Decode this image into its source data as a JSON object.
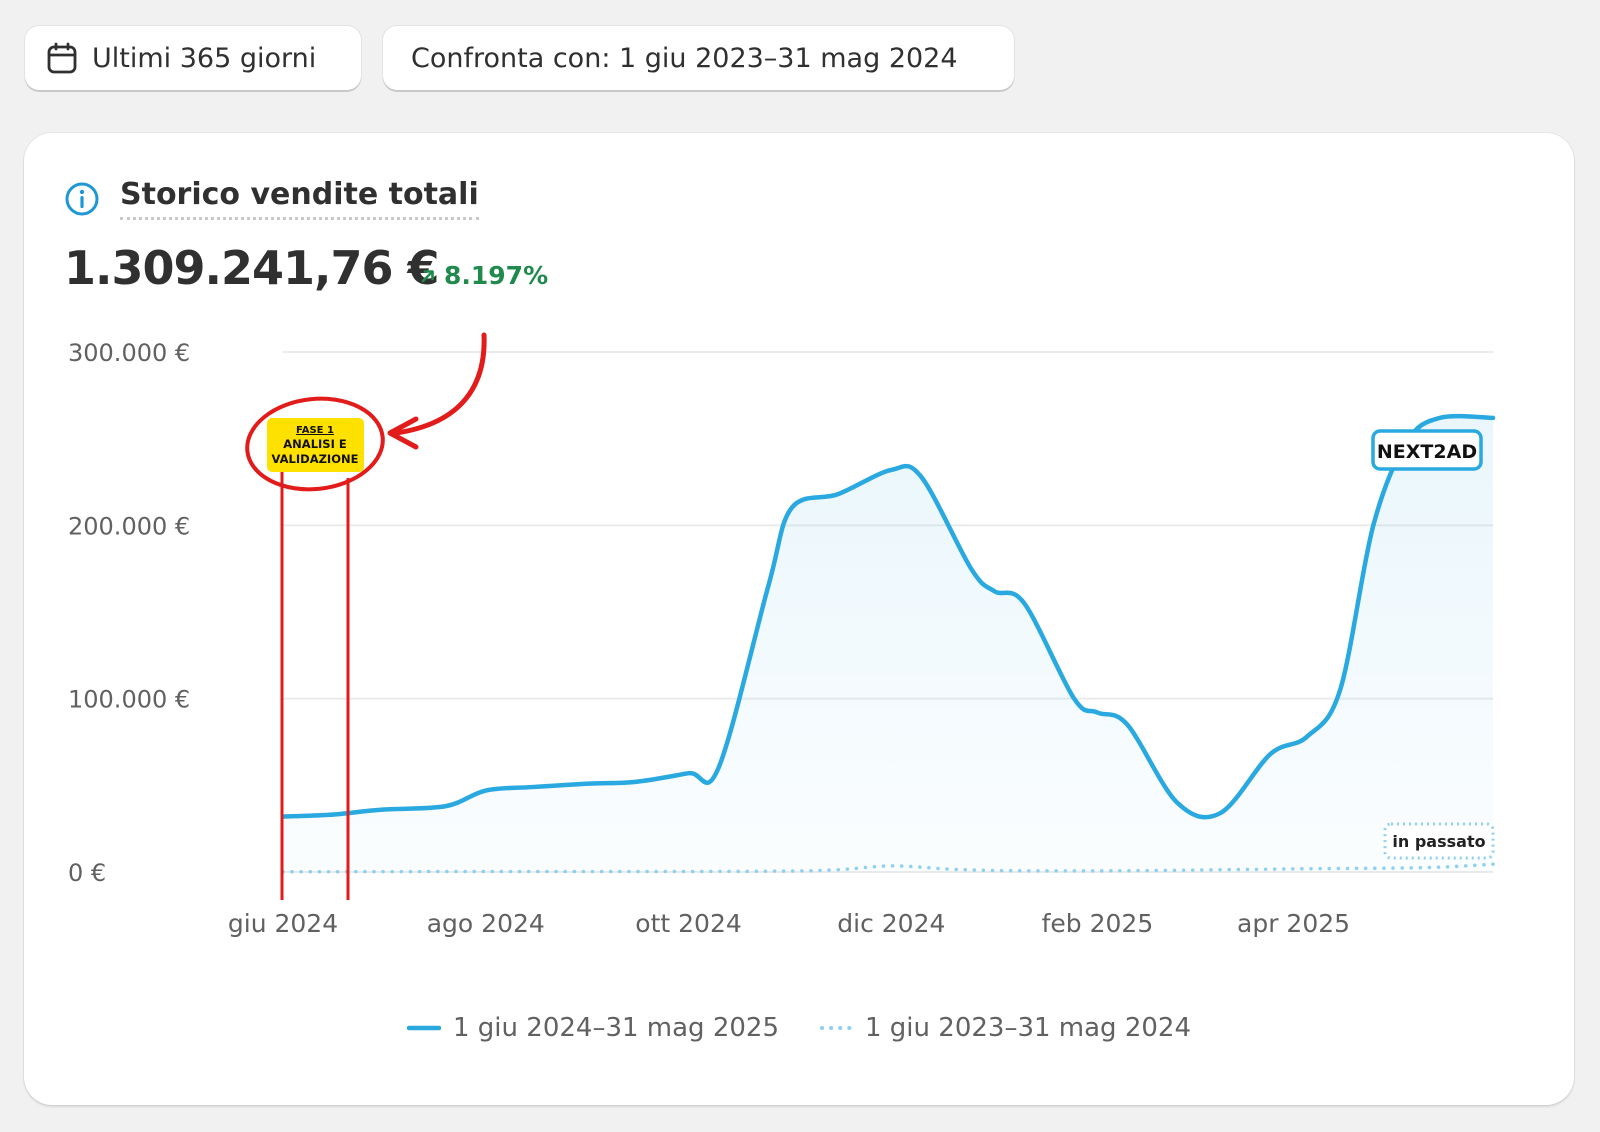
{
  "toolbar": {
    "date_range_label": "Ultimi 365 giorni",
    "compare_label": "Confronta con: 1 giu 2023–31 mag 2024"
  },
  "card": {
    "title": "Storico vendite totali",
    "total": "1.309.241,76 €",
    "delta": "8.197%"
  },
  "annotations": {
    "phase_line1": "FASE 1",
    "phase_line2": "ANALISI E",
    "phase_line3": "VALIDAZIONE",
    "brand": "NEXT2AD",
    "past_label": "in passato"
  },
  "colors": {
    "current_series": "#29a9e0",
    "previous_series": "#8fd0ee",
    "positive_delta": "#1f8a4c",
    "annotation_red": "#e21b1b",
    "annotation_yellow": "#ffe100"
  },
  "chart_data": {
    "type": "line",
    "title": "Storico vendite totali",
    "ylim": [
      0,
      300000
    ],
    "y_ticks": [
      {
        "value": 0,
        "label": "0 €"
      },
      {
        "value": 100000,
        "label": "100.000 €"
      },
      {
        "value": 200000,
        "label": "200.000 €"
      },
      {
        "value": 300000,
        "label": "300.000 €"
      }
    ],
    "x_ticks": [
      "giu 2024",
      "ago 2024",
      "ott 2024",
      "dic 2024",
      "feb 2025",
      "apr 2025"
    ],
    "x_range": [
      "2024-06-01",
      "2025-05-31"
    ],
    "grid": true,
    "legend_position": "bottom",
    "series": [
      {
        "name": "1 giu 2024–31 mag 2025",
        "style": "solid",
        "points": [
          [
            "2024-06-01",
            32000
          ],
          [
            "2024-06-15",
            33000
          ],
          [
            "2024-07-01",
            36000
          ],
          [
            "2024-07-20",
            38000
          ],
          [
            "2024-08-01",
            47000
          ],
          [
            "2024-08-15",
            49000
          ],
          [
            "2024-09-01",
            51000
          ],
          [
            "2024-09-15",
            52000
          ],
          [
            "2024-10-01",
            57000
          ],
          [
            "2024-10-10",
            60000
          ],
          [
            "2024-10-25",
            165000
          ],
          [
            "2024-11-01",
            210000
          ],
          [
            "2024-11-15",
            218000
          ],
          [
            "2024-12-01",
            232000
          ],
          [
            "2024-12-10",
            228000
          ],
          [
            "2024-12-25",
            175000
          ],
          [
            "2025-01-01",
            162000
          ],
          [
            "2025-01-10",
            155000
          ],
          [
            "2025-01-25",
            100000
          ],
          [
            "2025-02-01",
            92000
          ],
          [
            "2025-02-10",
            85000
          ],
          [
            "2025-02-25",
            40000
          ],
          [
            "2025-03-10",
            34000
          ],
          [
            "2025-03-25",
            68000
          ],
          [
            "2025-04-05",
            78000
          ],
          [
            "2025-04-15",
            105000
          ],
          [
            "2025-04-25",
            200000
          ],
          [
            "2025-05-05",
            248000
          ],
          [
            "2025-05-15",
            262000
          ],
          [
            "2025-05-31",
            262000
          ]
        ]
      },
      {
        "name": "1 giu 2023–31 mag 2024",
        "style": "dotted",
        "points": [
          [
            "2024-06-01",
            100
          ],
          [
            "2024-08-01",
            300
          ],
          [
            "2024-10-01",
            300
          ],
          [
            "2024-11-10",
            900
          ],
          [
            "2024-12-01",
            3500
          ],
          [
            "2024-12-20",
            1500
          ],
          [
            "2025-01-10",
            700
          ],
          [
            "2025-02-15",
            800
          ],
          [
            "2025-04-01",
            1800
          ],
          [
            "2025-05-10",
            2500
          ],
          [
            "2025-05-31",
            4500
          ]
        ]
      }
    ]
  }
}
